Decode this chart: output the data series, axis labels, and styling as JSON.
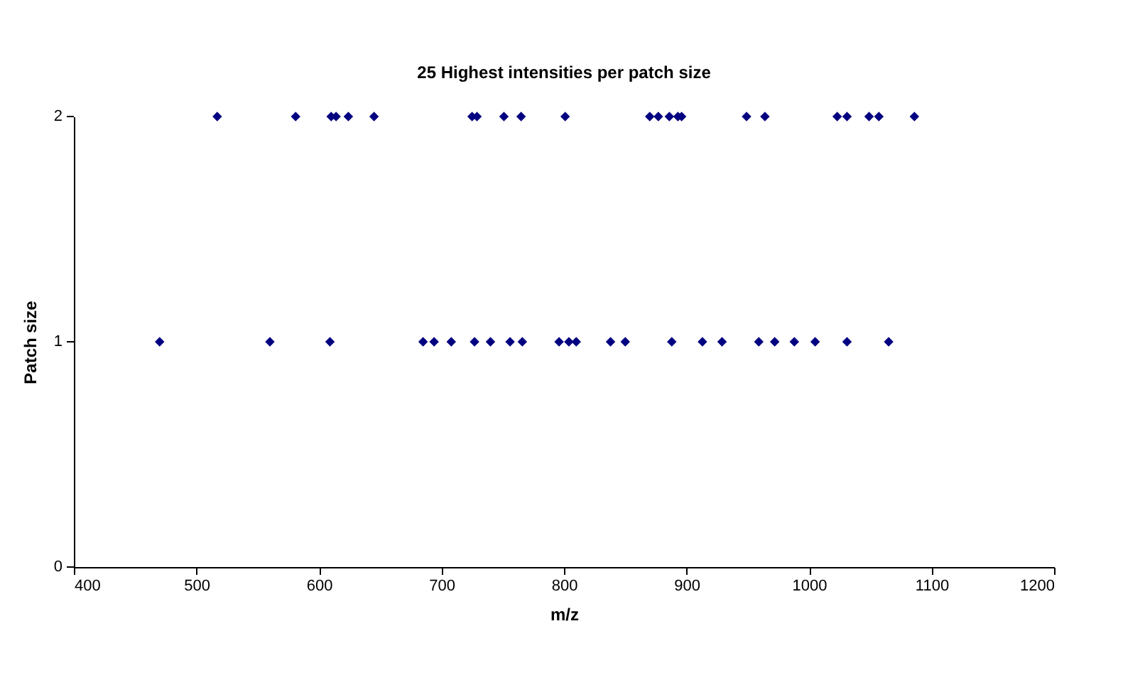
{
  "chart_data": {
    "type": "scatter",
    "title": "25 Highest intensities per patch size",
    "xlabel": "m/z",
    "ylabel": "Patch size",
    "xlim": [
      400,
      1200
    ],
    "xticks": [
      400,
      500,
      600,
      700,
      800,
      900,
      1000,
      1100,
      1200
    ],
    "ylim": [
      0,
      2
    ],
    "yticks": [
      0,
      1,
      2
    ],
    "grid": false,
    "legend": false,
    "marker": "diamond",
    "series": [
      {
        "color": "#000080",
        "x": [
          517,
          581,
          610,
          614,
          624,
          645,
          725,
          729,
          751,
          765,
          801,
          870,
          877,
          886,
          893,
          896,
          949,
          964,
          1023,
          1031,
          1049,
          1057,
          1086
        ],
        "values": [
          2,
          2,
          2,
          2,
          2,
          2,
          2,
          2,
          2,
          2,
          2,
          2,
          2,
          2,
          2,
          2,
          2,
          2,
          2,
          2,
          2,
          2,
          2
        ]
      },
      {
        "color": "#000080",
        "x": [
          470,
          560,
          609,
          685,
          694,
          708,
          727,
          740,
          756,
          766,
          796,
          804,
          810,
          838,
          850,
          888,
          913,
          929,
          959,
          972,
          988,
          1005,
          1031,
          1065
        ],
        "values": [
          1,
          1,
          1,
          1,
          1,
          1,
          1,
          1,
          1,
          1,
          1,
          1,
          1,
          1,
          1,
          1,
          1,
          1,
          1,
          1,
          1,
          1,
          1,
          1
        ]
      }
    ]
  }
}
